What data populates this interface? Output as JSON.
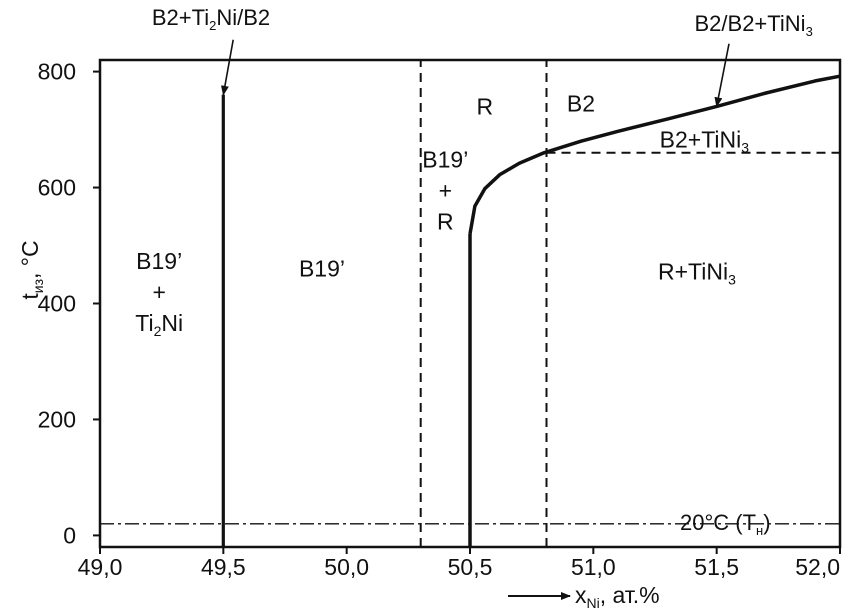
{
  "chart_data": {
    "type": "phase-diagram",
    "xlabel": {
      "var": "x",
      "sub": "Ni",
      "unit": ", ат.%"
    },
    "ylabel": {
      "var": "t",
      "sub": "из",
      "unit": ", °C"
    },
    "xlim": [
      49.0,
      52.0
    ],
    "ylim": [
      -20,
      820
    ],
    "xticks": [
      {
        "value": 49.0,
        "label": "49,0"
      },
      {
        "value": 49.5,
        "label": "49,5"
      },
      {
        "value": 50.0,
        "label": "50,0"
      },
      {
        "value": 50.5,
        "label": "50,5"
      },
      {
        "value": 51.0,
        "label": "51,0"
      },
      {
        "value": 51.5,
        "label": "51,5"
      },
      {
        "value": 52.0,
        "label": "52,0"
      }
    ],
    "yticks": [
      {
        "value": 0,
        "label": "0"
      },
      {
        "value": 200,
        "label": "200"
      },
      {
        "value": 400,
        "label": "400"
      },
      {
        "value": 600,
        "label": "600"
      },
      {
        "value": 800,
        "label": "800"
      }
    ],
    "solid_lines": [
      {
        "name": "b2-ti2ni-boundary",
        "points": [
          [
            49.5,
            -20
          ],
          [
            49.5,
            760
          ]
        ]
      }
    ],
    "solvus_curve": {
      "name": "b2-tini3-solvus",
      "points": [
        [
          50.5,
          520
        ],
        [
          50.52,
          568
        ],
        [
          50.56,
          598
        ],
        [
          50.62,
          622
        ],
        [
          50.7,
          642
        ],
        [
          50.8,
          660
        ],
        [
          50.95,
          680
        ],
        [
          51.1,
          697
        ],
        [
          51.3,
          718
        ],
        [
          51.5,
          740
        ],
        [
          51.7,
          763
        ],
        [
          51.9,
          784
        ],
        [
          52.0,
          792
        ]
      ]
    },
    "dashed_lines": [
      {
        "name": "b19-r-boundary",
        "points": [
          [
            50.3,
            -20
          ],
          [
            50.3,
            820
          ]
        ]
      },
      {
        "name": "r-tini3-boundary",
        "points": [
          [
            50.81,
            -20
          ],
          [
            50.81,
            820
          ]
        ]
      },
      {
        "name": "tini3-horizontal",
        "points": [
          [
            50.81,
            660
          ],
          [
            52.0,
            660
          ]
        ]
      }
    ],
    "dashdot_lines": [
      {
        "name": "room-temperature-line",
        "value": 20
      }
    ],
    "region_labels": [
      {
        "id": "r1",
        "lines": [
          {
            "text": "B19’"
          },
          {
            "text": "+"
          },
          {
            "base": "Ti",
            "sub": "2",
            "rest": "Ni"
          }
        ],
        "x": 49.24,
        "y": 420
      },
      {
        "id": "r2",
        "lines": [
          {
            "text": "B19’"
          }
        ],
        "x": 49.9,
        "y": 460
      },
      {
        "id": "r3",
        "lines": [
          {
            "text": "B19’"
          },
          {
            "text": "+"
          },
          {
            "text": "R"
          }
        ],
        "x": 50.4,
        "y": 595
      },
      {
        "id": "r4",
        "lines": [
          {
            "text": "R"
          }
        ],
        "x": 50.56,
        "y": 740
      },
      {
        "id": "r5",
        "lines": [
          {
            "text": "B2"
          }
        ],
        "x": 50.95,
        "y": 745
      },
      {
        "id": "r6",
        "lines": [
          {
            "base": "B2+TiNi",
            "sub": "3",
            "rest": ""
          }
        ],
        "x": 51.45,
        "y": 683
      },
      {
        "id": "r7",
        "lines": [
          {
            "base": "R+TiNi",
            "sub": "3",
            "rest": ""
          }
        ],
        "x": 51.42,
        "y": 455
      }
    ],
    "callouts": [
      {
        "id": "c1",
        "parts": [
          {
            "base": "B2+Ti",
            "sub": "2",
            "rest": "Ni/B2"
          }
        ],
        "label_x": 49.45,
        "label_y": 880,
        "arrow_from": [
          49.54,
          855
        ],
        "arrow_to": [
          49.5,
          760
        ]
      },
      {
        "id": "c2",
        "parts": [
          {
            "base": "B2/B2+TiNi",
            "sub": "3",
            "rest": ""
          }
        ],
        "label_x": 51.65,
        "label_y": 870,
        "arrow_from": [
          51.55,
          848
        ],
        "arrow_to": [
          51.5,
          740
        ]
      }
    ],
    "room_temperature_label": {
      "base": "20°C (T",
      "sub": "н",
      "rest": ")"
    },
    "grid": false
  }
}
